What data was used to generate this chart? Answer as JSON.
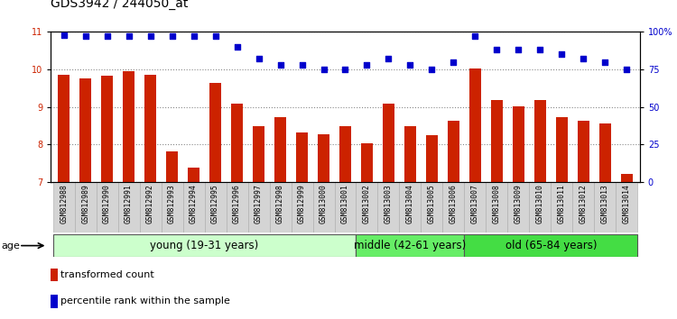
{
  "title": "GDS3942 / 244050_at",
  "samples": [
    "GSM812988",
    "GSM812989",
    "GSM812990",
    "GSM812991",
    "GSM812992",
    "GSM812993",
    "GSM812994",
    "GSM812995",
    "GSM812996",
    "GSM812997",
    "GSM812998",
    "GSM812999",
    "GSM813000",
    "GSM813001",
    "GSM813002",
    "GSM813003",
    "GSM813004",
    "GSM813005",
    "GSM813006",
    "GSM813007",
    "GSM813008",
    "GSM813009",
    "GSM813010",
    "GSM813011",
    "GSM813012",
    "GSM813013",
    "GSM813014"
  ],
  "bar_values": [
    9.85,
    9.75,
    9.82,
    9.95,
    9.86,
    7.82,
    7.38,
    9.65,
    9.08,
    8.48,
    8.72,
    8.32,
    8.28,
    8.48,
    8.02,
    9.08,
    8.48,
    8.25,
    8.62,
    10.02,
    9.18,
    9.02,
    9.18,
    8.72,
    8.62,
    8.55,
    7.22
  ],
  "dot_values": [
    98,
    97,
    97,
    97,
    97,
    97,
    97,
    97,
    90,
    82,
    78,
    78,
    75,
    75,
    78,
    82,
    78,
    75,
    80,
    97,
    88,
    88,
    88,
    85,
    82,
    80,
    75
  ],
  "bar_color": "#cc2200",
  "dot_color": "#0000cc",
  "ylim_left": [
    7,
    11
  ],
  "ylim_right": [
    0,
    100
  ],
  "yticks_left": [
    7,
    8,
    9,
    10,
    11
  ],
  "yticks_right": [
    0,
    25,
    50,
    75,
    100
  ],
  "ytick_labels_right": [
    "0",
    "25",
    "50",
    "75",
    "100%"
  ],
  "groups": [
    {
      "label": "young (19-31 years)",
      "start": 0,
      "end": 14,
      "color": "#ccffcc"
    },
    {
      "label": "middle (42-61 years)",
      "start": 14,
      "end": 19,
      "color": "#66ee66"
    },
    {
      "label": "old (65-84 years)",
      "start": 19,
      "end": 27,
      "color": "#44dd44"
    }
  ],
  "age_label": "age",
  "legend_bar_label": "transformed count",
  "legend_dot_label": "percentile rank within the sample",
  "background_color": "#ffffff",
  "plot_bg_color": "#ffffff",
  "label_bg_color": "#d4d4d4",
  "title_fontsize": 10,
  "tick_fontsize": 7,
  "label_fontsize": 5.8,
  "group_fontsize": 8.5,
  "legend_fontsize": 8
}
